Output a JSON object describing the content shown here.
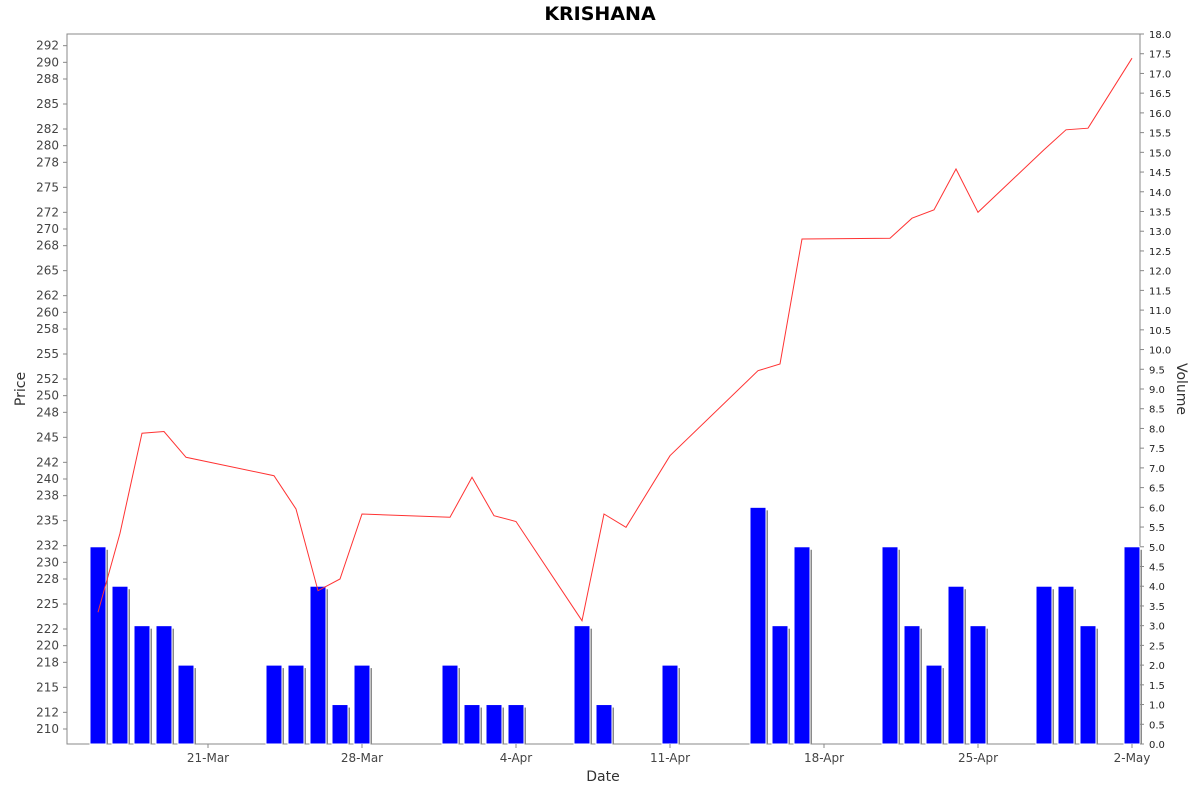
{
  "chart_data": {
    "type": "bar+line",
    "title": "KRISHANA",
    "xlabel": "Date",
    "ylabel": "Price",
    "y2label": "Volume",
    "x_tick_labels": [
      "21-Mar",
      "28-Mar",
      "4-Apr",
      "11-Apr",
      "18-Apr",
      "25-Apr",
      "2-May"
    ],
    "ylim": [
      208.2,
      293.4
    ],
    "y_ticks": [
      210,
      212,
      215,
      218,
      220,
      222,
      225,
      228,
      230,
      232,
      235,
      238,
      240,
      242,
      245,
      248,
      250,
      252,
      255,
      258,
      260,
      262,
      265,
      268,
      270,
      272,
      275,
      278,
      280,
      282,
      285,
      288,
      290,
      292
    ],
    "y2lim": [
      0,
      18
    ],
    "y2_ticks": [
      "0.0",
      "0.5",
      "1.0",
      "1.5",
      "2.0",
      "2.5",
      "3.0",
      "3.5",
      "4.0",
      "4.5",
      "5.0",
      "5.5",
      "6.0",
      "6.5",
      "7.0",
      "7.5",
      "8.0",
      "8.5",
      "9.0",
      "9.5",
      "10.0",
      "10.5",
      "11.0",
      "11.5",
      "12.0",
      "12.5",
      "13.0",
      "13.5",
      "14.0",
      "14.5",
      "15.0",
      "15.5",
      "16.0",
      "16.5",
      "17.0",
      "17.5",
      "18.0"
    ],
    "price_series": {
      "color": "#ff3333",
      "x": [
        "2025-03-16",
        "2025-03-17",
        "2025-03-18",
        "2025-03-19",
        "2025-03-20",
        "2025-03-24",
        "2025-03-25",
        "2025-03-26",
        "2025-03-27",
        "2025-03-28",
        "2025-04-01",
        "2025-04-02",
        "2025-04-03",
        "2025-04-04",
        "2025-04-07",
        "2025-04-08",
        "2025-04-09",
        "2025-04-11",
        "2025-04-15",
        "2025-04-16",
        "2025-04-17",
        "2025-04-21",
        "2025-04-22",
        "2025-04-23",
        "2025-04-24",
        "2025-04-25",
        "2025-04-28",
        "2025-04-29",
        "2025-04-30",
        "2025-05-02"
      ],
      "values": [
        224.0,
        233.5,
        245.5,
        245.7,
        242.6,
        240.4,
        236.4,
        226.6,
        228.0,
        235.8,
        235.4,
        240.2,
        235.6,
        234.9,
        223.0,
        235.8,
        234.2,
        242.8,
        253.0,
        253.8,
        268.8,
        268.9,
        271.3,
        272.3,
        277.2,
        272.0,
        279.5,
        281.9,
        282.1,
        290.5
      ]
    },
    "volume_series": {
      "color": "#0000ff",
      "shadow_color": "#8a8a8a",
      "x": [
        "2025-03-16",
        "2025-03-17",
        "2025-03-18",
        "2025-03-19",
        "2025-03-20",
        "2025-03-24",
        "2025-03-25",
        "2025-03-26",
        "2025-03-27",
        "2025-03-28",
        "2025-04-01",
        "2025-04-02",
        "2025-04-03",
        "2025-04-04",
        "2025-04-07",
        "2025-04-08",
        "2025-04-11",
        "2025-04-15",
        "2025-04-16",
        "2025-04-17",
        "2025-04-21",
        "2025-04-22",
        "2025-04-23",
        "2025-04-24",
        "2025-04-25",
        "2025-04-28",
        "2025-04-29",
        "2025-04-30",
        "2025-05-02"
      ],
      "values": [
        5,
        4,
        3,
        3,
        2,
        2,
        2,
        4,
        1,
        2,
        2,
        1,
        1,
        1,
        3,
        1,
        2,
        6,
        3,
        5,
        5,
        3,
        2,
        4,
        3,
        4,
        4,
        3,
        5
      ]
    }
  }
}
